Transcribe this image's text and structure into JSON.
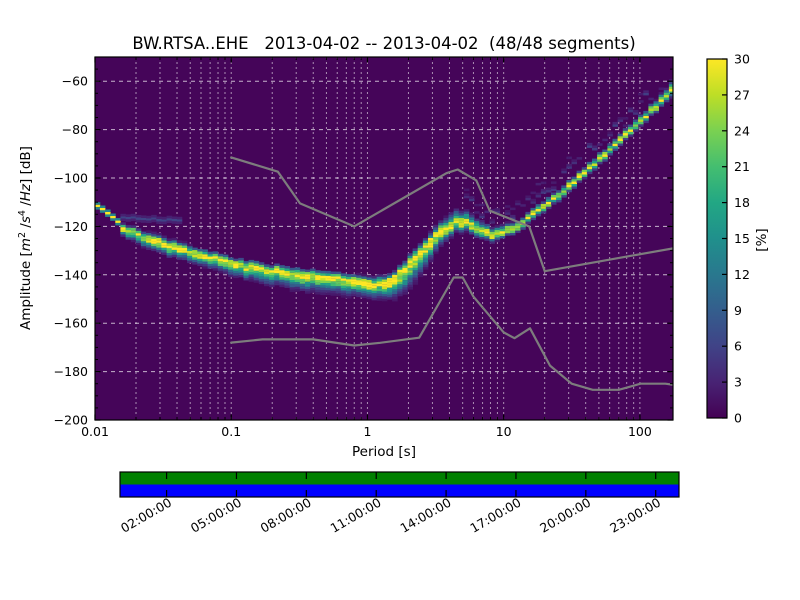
{
  "title": "BW.RTSA..EHE   2013-04-02 -- 2013-04-02  (48/48 segments)",
  "chart_data": {
    "type": "heatmap",
    "description": "PPSD probabilistic power spectral density plot, viridis colormap, with Peterson NHNM/NLNM noise model lines",
    "title": "BW.RTSA..EHE   2013-04-02 -- 2013-04-02  (48/48 segments)",
    "xlabel": "Period [s]",
    "ylabel": "Amplitude [m^2 /s^4 /Hz] [dB]",
    "ylabel_parts": [
      "Amplitude [",
      "m",
      "2",
      " /",
      "s",
      "4",
      " /",
      "Hz",
      "] [dB]"
    ],
    "xscale": "log",
    "xlim": [
      0.01,
      175
    ],
    "ylim_db": [
      -200,
      -50
    ],
    "x_major_ticks": [
      0.01,
      0.1,
      1,
      10,
      100
    ],
    "x_major_tick_labels": [
      "0.01",
      "0.1",
      "1",
      "10",
      "100"
    ],
    "y_major_ticks": [
      -200,
      -180,
      -160,
      -140,
      -120,
      -100,
      -80,
      -60
    ],
    "y_minor_step_db": 5,
    "grid": true,
    "colorbar": {
      "label": "[%]",
      "min": 0,
      "max": 30,
      "ticks": [
        0,
        3,
        6,
        9,
        12,
        15,
        18,
        21,
        24,
        27,
        30
      ],
      "colormap": "viridis"
    },
    "psd_mode_curve": [
      {
        "p": 0.0148,
        "db": -120.0,
        "sa": 1.3,
        "sb": 2.0
      },
      {
        "p": 0.02,
        "db": -123.0,
        "sa": 1.6,
        "sb": 2.6
      },
      {
        "p": 0.028,
        "db": -126.0,
        "sa": 2.0,
        "sb": 3.0
      },
      {
        "p": 0.04,
        "db": -129.0,
        "sa": 2.0,
        "sb": 3.0
      },
      {
        "p": 0.058,
        "db": -131.5,
        "sa": 1.8,
        "sb": 3.0
      },
      {
        "p": 0.08,
        "db": -133.5,
        "sa": 1.8,
        "sb": 3.2
      },
      {
        "p": 0.11,
        "db": -135.5,
        "sa": 1.8,
        "sb": 3.5
      },
      {
        "p": 0.16,
        "db": -137.5,
        "sa": 1.8,
        "sb": 4.0
      },
      {
        "p": 0.23,
        "db": -138.5,
        "sa": 1.8,
        "sb": 4.2
      },
      {
        "p": 0.35,
        "db": -140.0,
        "sa": 1.8,
        "sb": 4.5
      },
      {
        "p": 0.5,
        "db": -141.0,
        "sa": 1.8,
        "sb": 4.5
      },
      {
        "p": 0.7,
        "db": -142.0,
        "sa": 1.8,
        "sb": 4.3
      },
      {
        "p": 1.0,
        "db": -143.5,
        "sa": 2.0,
        "sb": 4.0
      },
      {
        "p": 1.35,
        "db": -143.5,
        "sa": 2.2,
        "sb": 4.5
      },
      {
        "p": 1.7,
        "db": -140.0,
        "sa": 2.4,
        "sb": 6.0
      },
      {
        "p": 2.1,
        "db": -134.5,
        "sa": 2.4,
        "sb": 7.0
      },
      {
        "p": 2.7,
        "db": -128.5,
        "sa": 2.4,
        "sb": 6.0
      },
      {
        "p": 3.4,
        "db": -122.5,
        "sa": 3.0,
        "sb": 4.0
      },
      {
        "p": 4.3,
        "db": -118.5,
        "sa": 3.5,
        "sb": 3.0
      },
      {
        "p": 5.2,
        "db": -118.5,
        "sa": 3.5,
        "sb": 2.5
      },
      {
        "p": 6.5,
        "db": -121.5,
        "sa": 3.0,
        "sb": 2.4
      },
      {
        "p": 8.0,
        "db": -123.5,
        "sa": 2.2,
        "sb": 2.2
      },
      {
        "p": 10.0,
        "db": -122.5,
        "sa": 2.0,
        "sb": 1.8
      },
      {
        "p": 13.0,
        "db": -119.5,
        "sa": 1.8,
        "sb": 1.6
      },
      {
        "p": 18.0,
        "db": -113.5,
        "sa": 1.8,
        "sb": 1.6
      },
      {
        "p": 26.0,
        "db": -107.0,
        "sa": 1.8,
        "sb": 1.6
      },
      {
        "p": 40.0,
        "db": -97.5,
        "sa": 1.8,
        "sb": 1.6
      },
      {
        "p": 60.0,
        "db": -88.5,
        "sa": 1.8,
        "sb": 1.6
      },
      {
        "p": 85.0,
        "db": -80.5,
        "sa": 1.8,
        "sb": 1.6
      },
      {
        "p": 120.0,
        "db": -72.5,
        "sa": 1.8,
        "sb": 1.6
      },
      {
        "p": 160.0,
        "db": -65.5,
        "sa": 2.2,
        "sb": 1.8
      },
      {
        "p": 175.0,
        "db": -63.0,
        "sa": 2.8,
        "sb": 2.2
      }
    ],
    "psd_secondary_streaks": [
      {
        "p0": 0.01,
        "p1": 0.0148,
        "db0": -110.5,
        "db1": -118.0,
        "pct": 30
      },
      {
        "p0": 0.016,
        "p1": 0.042,
        "db0": -116.5,
        "db1": -117.5,
        "pct": 6
      }
    ],
    "psd_upper_tail": {
      "period_range": [
        4.5,
        170
      ],
      "pct_max": 6
    },
    "noise_models": {
      "name": "Peterson (1993) NHNM / NLNM",
      "nhnm": [
        [
          0.1,
          -91.5
        ],
        [
          0.22,
          -97.4
        ],
        [
          0.32,
          -110.5
        ],
        [
          0.8,
          -120.0
        ],
        [
          3.8,
          -98.0
        ],
        [
          4.6,
          -96.5
        ],
        [
          6.3,
          -101.0
        ],
        [
          7.9,
          -113.5
        ],
        [
          15.4,
          -120.0
        ],
        [
          20.0,
          -138.5
        ],
        [
          354.8,
          -126.0
        ]
      ],
      "nlnm": [
        [
          0.1,
          -168.0
        ],
        [
          0.17,
          -166.7
        ],
        [
          0.4,
          -166.7
        ],
        [
          0.8,
          -169.2
        ],
        [
          1.24,
          -168.1
        ],
        [
          2.4,
          -166.0
        ],
        [
          4.3,
          -141.1
        ],
        [
          5.0,
          -141.1
        ],
        [
          6.0,
          -149.0
        ],
        [
          10.0,
          -163.8
        ],
        [
          12.0,
          -166.2
        ],
        [
          15.6,
          -162.1
        ],
        [
          21.9,
          -177.5
        ],
        [
          31.6,
          -185.0
        ],
        [
          45.0,
          -187.5
        ],
        [
          70.0,
          -187.5
        ],
        [
          101.0,
          -185.0
        ],
        [
          154.0,
          -185.0
        ],
        [
          328.0,
          -187.5
        ]
      ]
    }
  },
  "timeline": {
    "labels": [
      "02:00:00",
      "05:00:00",
      "08:00:00",
      "11:00:00",
      "14:00:00",
      "17:00:00",
      "20:00:00",
      "23:00:00"
    ],
    "hours": [
      2,
      5,
      8,
      11,
      14,
      17,
      20,
      23
    ],
    "hour_range": [
      0,
      24
    ],
    "top_color": "#008000",
    "bottom_color": "#0000ff"
  },
  "colors": {
    "background": "#ffffff",
    "plot_background": "#450559",
    "grid": "#ffffff",
    "noise_model": "#7d7d7d",
    "spine": "#000000",
    "text": "#000000",
    "viridis_min": "#440154",
    "viridis_max": "#fde725"
  }
}
